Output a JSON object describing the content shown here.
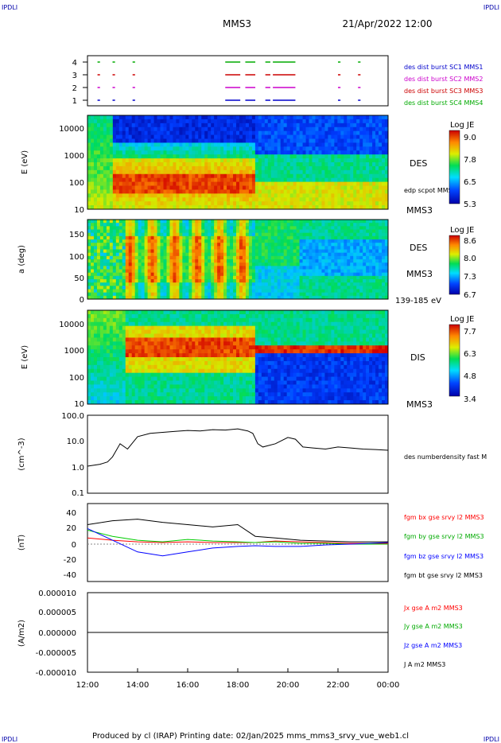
{
  "header": {
    "corner_tl": "IPDLI",
    "corner_tr": "IPDLI",
    "corner_bl": "IPDLI",
    "corner_br": "IPDLI",
    "mission": "MMS3",
    "datetime": "21/Apr/2022 12:00"
  },
  "footer": {
    "text": "Produced by cl (IRAP)   Printing date: 02/Jan/2025   mms_mms3_srvy_vue_web1.cl"
  },
  "colors": {
    "mms1": "#0000cc",
    "mms2": "#cc00cc",
    "mms3": "#cc0000",
    "mms4": "#00aa00",
    "bx": "#ff0000",
    "by": "#00cc00",
    "bz": "#0000ff",
    "bt": "#000000"
  },
  "x_axis": {
    "ticks": [
      "12:00",
      "14:00",
      "16:00",
      "18:00",
      "20:00",
      "22:00",
      "00:00"
    ]
  },
  "chart_data": [
    {
      "type": "timeline",
      "panel": "burst",
      "y_ticks": [
        "4",
        "3",
        "2",
        "1"
      ],
      "legend": [
        "des dist burst SC1 MMS1",
        "des dist burst SC2 MMS2",
        "des dist burst SC3 MMS3",
        "des dist burst SC4 MMS4"
      ],
      "intervals_hours": [
        [
          12.4,
          12.5
        ],
        [
          13.0,
          13.1
        ],
        [
          13.8,
          13.9
        ],
        [
          17.5,
          18.1
        ],
        [
          18.3,
          18.7
        ],
        [
          19.1,
          19.3
        ],
        [
          19.4,
          20.3
        ],
        [
          22.0,
          22.1
        ],
        [
          22.8,
          22.9
        ]
      ]
    },
    {
      "type": "heatmap",
      "panel": "des-energy",
      "ylabel": "E (eV)",
      "y_ticks": [
        "10000",
        "1000",
        "100",
        "10"
      ],
      "right_labels": [
        "DES",
        "edp scpot MMS3",
        "MMS3"
      ],
      "colorbar": {
        "title": "Log JE",
        "ticks": [
          "9.0",
          "7.8",
          "6.5",
          "5.3"
        ]
      }
    },
    {
      "type": "heatmap",
      "panel": "des-pitch",
      "ylabel": "a (deg)",
      "y_ticks": [
        "150",
        "100",
        "50",
        "0"
      ],
      "right_labels": [
        "DES",
        "MMS3",
        "139-185 eV"
      ],
      "colorbar": {
        "title": "Log JE",
        "ticks": [
          "8.6",
          "8.0",
          "7.3",
          "6.7"
        ]
      }
    },
    {
      "type": "heatmap",
      "panel": "dis-energy",
      "ylabel": "E (eV)",
      "y_ticks": [
        "10000",
        "1000",
        "100",
        "10"
      ],
      "right_labels": [
        "DIS",
        "MMS3"
      ],
      "colorbar": {
        "title": "Log JE",
        "ticks": [
          "7.7",
          "6.3",
          "4.8",
          "3.4"
        ]
      }
    },
    {
      "type": "line",
      "panel": "density",
      "ylabel": "(cm^-3)",
      "y_ticks": [
        "100.0",
        "10.0",
        "1.0",
        "0.1"
      ],
      "legend": [
        "des numberdensity fast M"
      ],
      "series": [
        {
          "x_hours": [
            12.0,
            12.5,
            12.8,
            13.0,
            13.3,
            13.6,
            14.0,
            14.5,
            15.0,
            15.5,
            16.0,
            16.5,
            17.0,
            17.5,
            18.0,
            18.4,
            18.6,
            18.8,
            19.0,
            19.5,
            20.0,
            20.3,
            20.6,
            21.0,
            21.5,
            22.0,
            22.5,
            23.0,
            23.5,
            24.0
          ],
          "y": [
            1.1,
            1.3,
            1.6,
            2.5,
            8.0,
            5.0,
            15.0,
            20.0,
            22.0,
            24.0,
            26.0,
            25.0,
            28.0,
            27.0,
            30.0,
            25.0,
            20.0,
            8.0,
            6.0,
            8.0,
            14.0,
            12.0,
            6.0,
            5.5,
            5.0,
            6.0,
            5.5,
            5.0,
            4.8,
            4.5
          ]
        }
      ]
    },
    {
      "type": "line",
      "panel": "magnetic-field",
      "ylabel": "(nT)",
      "y_ticks": [
        "40",
        "20",
        "0",
        "-20",
        "-40"
      ],
      "legend": [
        "fgm bx gse srvy l2 MMS3",
        "fgm by gse srvy l2 MMS3",
        "fgm bz gse srvy l2 MMS3",
        "fgm bt gse srvy l2 MMS3"
      ],
      "series": [
        {
          "name": "fgm bx gse srvy l2 MMS3",
          "x_hours": [
            12.0,
            13.0,
            14.0,
            15.0,
            16.0,
            17.0,
            18.0,
            18.7,
            19.5,
            20.5,
            21.5,
            22.5,
            24.0
          ],
          "y": [
            8,
            5,
            3,
            2,
            3,
            2,
            2,
            2,
            4,
            3,
            2,
            1,
            1
          ]
        },
        {
          "name": "fgm by gse srvy l2 MMS3",
          "x_hours": [
            12.0,
            13.0,
            14.0,
            15.0,
            16.0,
            17.0,
            18.0,
            18.7,
            19.5,
            20.5,
            21.5,
            22.5,
            24.0
          ],
          "y": [
            18,
            10,
            5,
            3,
            6,
            4,
            3,
            2,
            3,
            1,
            1,
            0,
            0
          ]
        },
        {
          "name": "fgm bz gse srvy l2 MMS3",
          "x_hours": [
            12.0,
            13.0,
            14.0,
            15.0,
            16.0,
            17.0,
            18.0,
            18.7,
            19.5,
            20.5,
            21.5,
            22.5,
            24.0
          ],
          "y": [
            20,
            5,
            -10,
            -15,
            -10,
            -5,
            -3,
            -2,
            -3,
            -3,
            -1,
            0,
            2
          ]
        },
        {
          "name": "fgm bt gse srvy l2 MMS3",
          "x_hours": [
            12.0,
            13.0,
            14.0,
            15.0,
            16.0,
            17.0,
            18.0,
            18.7,
            19.5,
            20.5,
            21.5,
            22.5,
            24.0
          ],
          "y": [
            25,
            30,
            32,
            28,
            25,
            22,
            25,
            10,
            8,
            5,
            4,
            3,
            3
          ]
        }
      ]
    },
    {
      "type": "line",
      "panel": "current-density",
      "ylabel": "(A/m2)",
      "y_ticks": [
        "0.000010",
        "0.000005",
        "0.000000",
        "-0.000005",
        "-0.000010"
      ],
      "legend": [
        "Jx gse A m2 MMS3",
        "Jy gse A m2 MMS3",
        "Jz gse A m2 MMS3",
        "J A m2 MMS3"
      ],
      "series": [
        {
          "x_hours": [
            12.0,
            18.0,
            20.0,
            24.0
          ],
          "y": [
            0,
            0,
            0,
            0
          ]
        }
      ]
    }
  ]
}
